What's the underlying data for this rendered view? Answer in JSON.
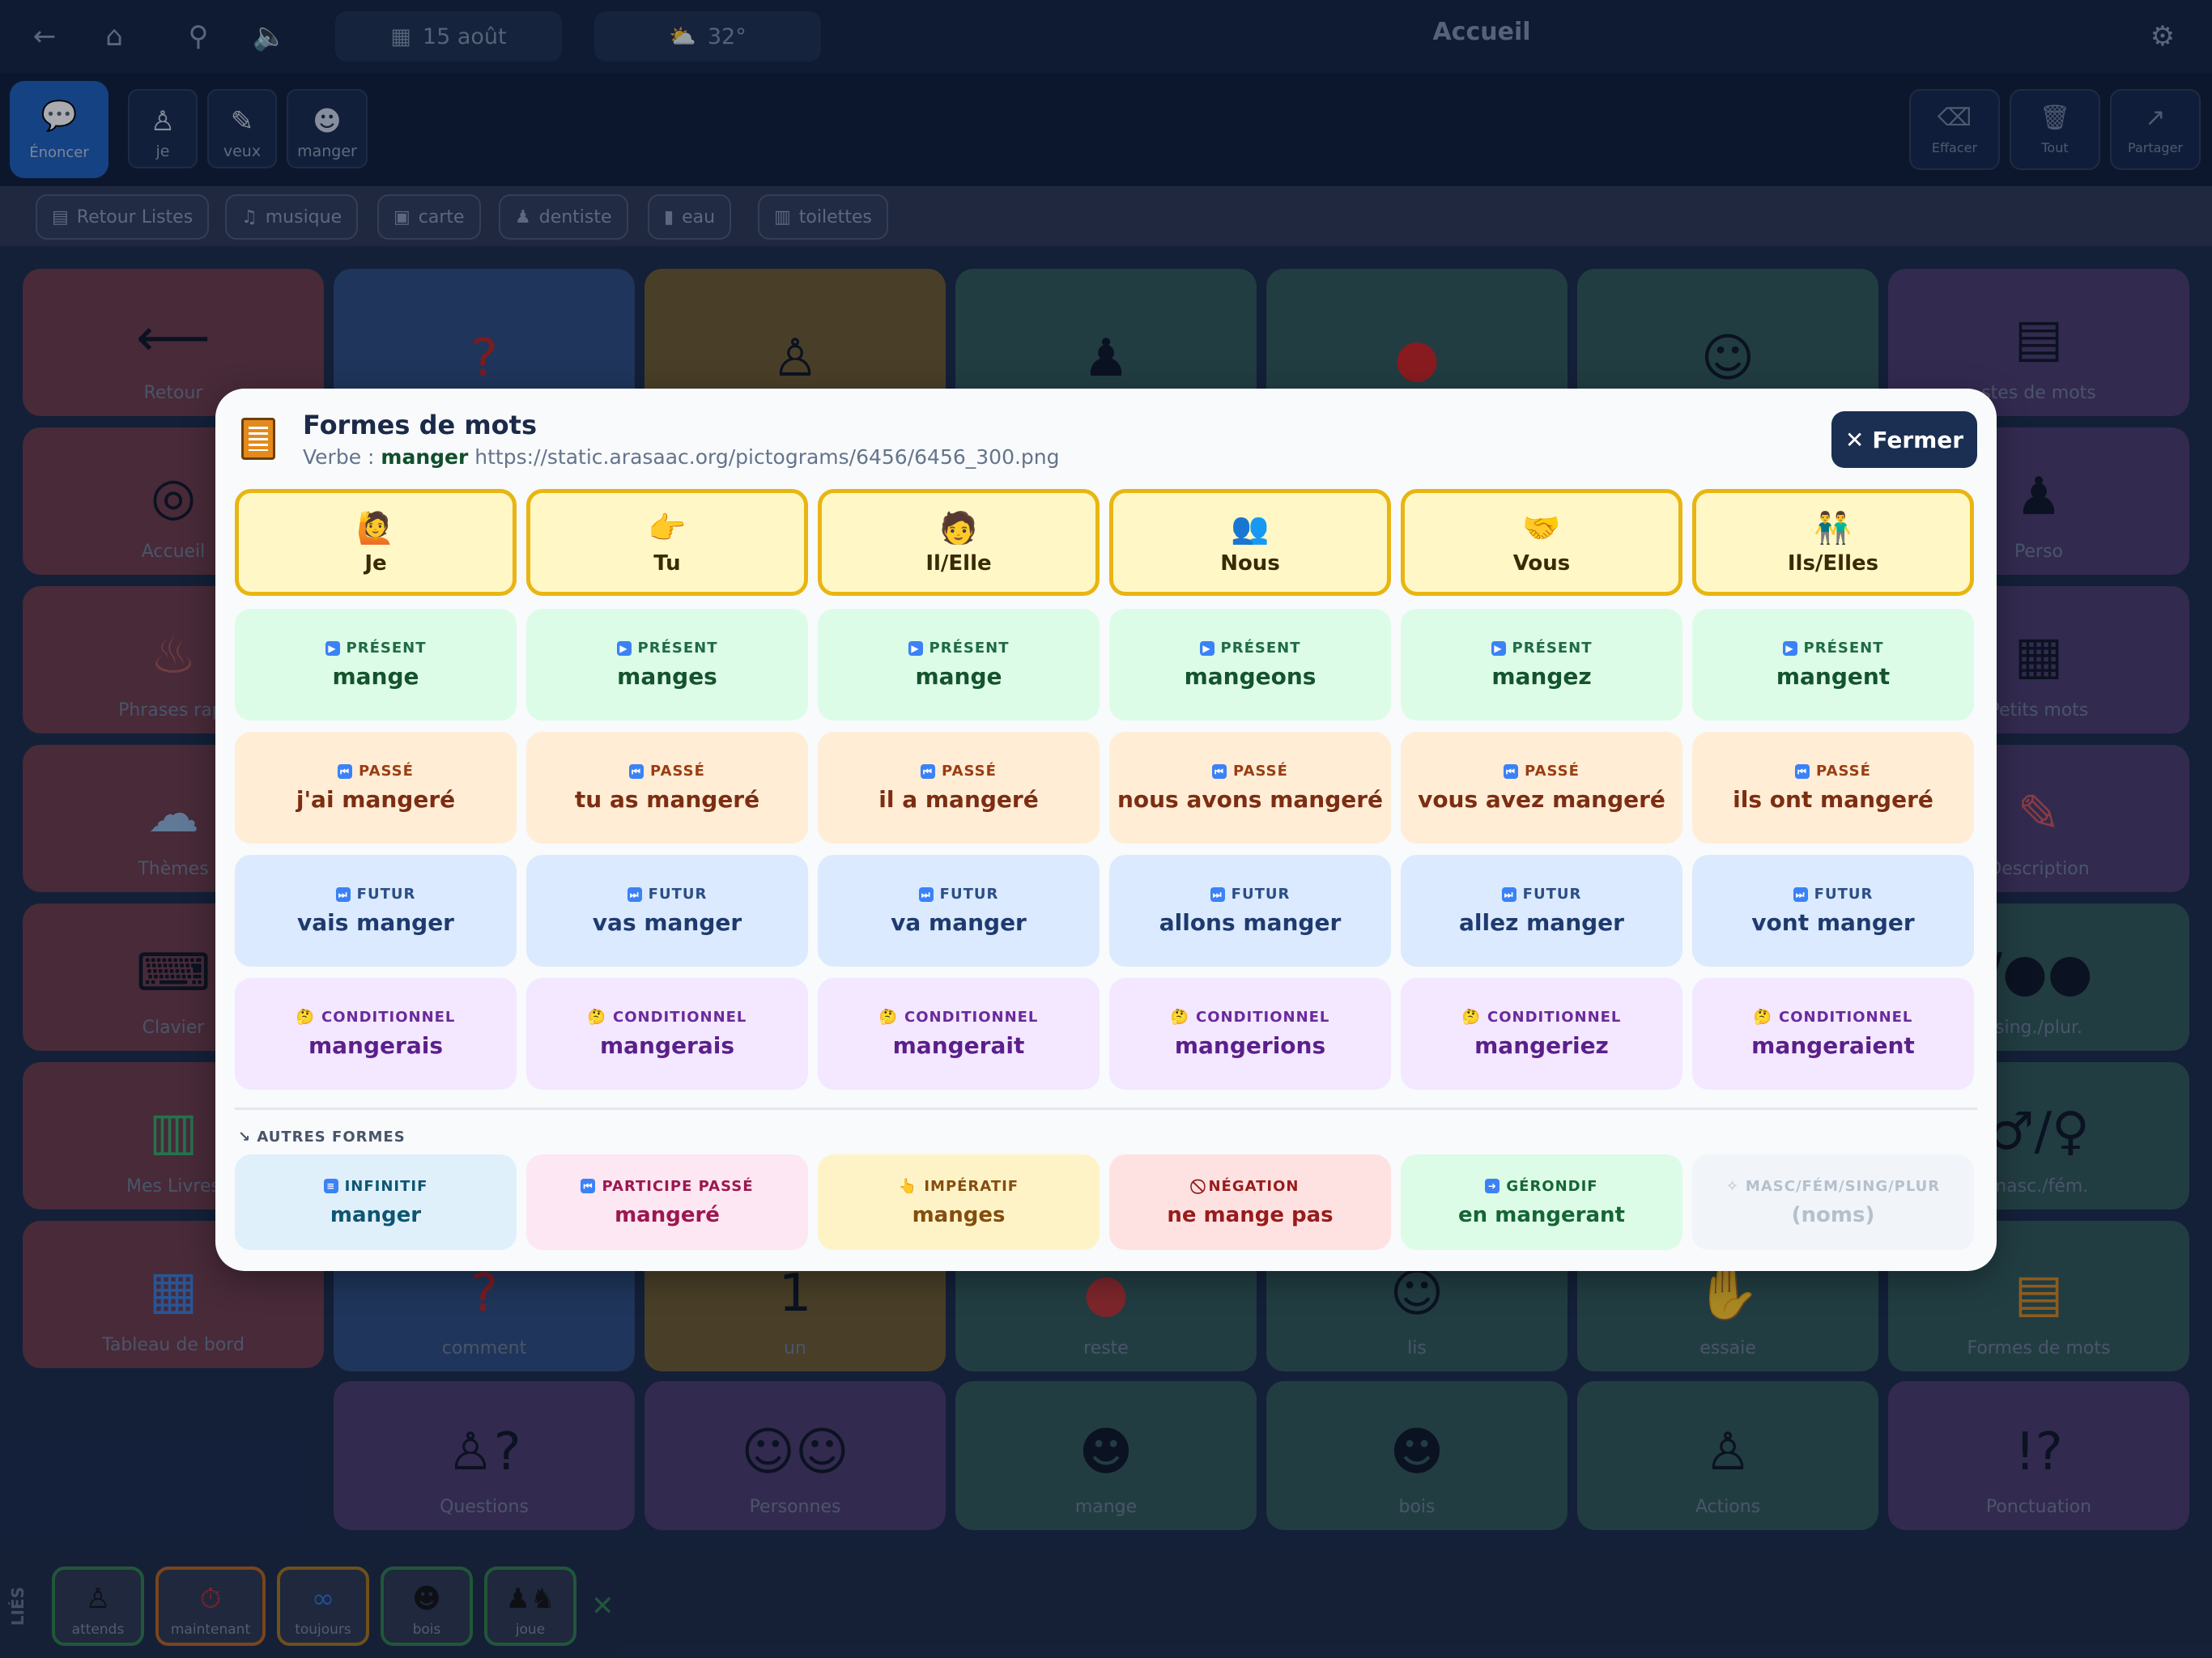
{
  "topbar": {
    "date": "15 août",
    "weather": "32°",
    "title": "Accueil"
  },
  "sentence": {
    "speak_label": "Énoncer",
    "words": [
      "je",
      "veux",
      "manger"
    ],
    "actions": {
      "clear": "Effacer",
      "all": "Tout",
      "share": "Partager"
    }
  },
  "categories": [
    "Retour Listes",
    "musique",
    "carte",
    "dentiste",
    "eau",
    "toilettes"
  ],
  "grid": {
    "tiles": [
      "Retour",
      "Accueil",
      "Phrases rapi",
      "Thèmes",
      "Clavier",
      "Mes Livres",
      "Tableau de bord",
      "comment",
      "un",
      "reste",
      "lis",
      "essaie",
      "Formes de mots",
      "Questions",
      "Personnes",
      "mange",
      "bois",
      "Actions",
      "Ponctuation",
      "stes de mots",
      "Perso",
      "Petits mots",
      "Description",
      "sing./plur.",
      "masc./fém."
    ]
  },
  "lies": {
    "label": "LIÉS",
    "items": [
      "attends",
      "maintenant",
      "toujours",
      "bois",
      "joue"
    ]
  },
  "modal": {
    "title": "Formes de mots",
    "sub_prefix": "Verbe :",
    "verb": "manger",
    "url": "https://static.arasaac.org/pictograms/6456/6456_300.png",
    "close_label": "Fermer",
    "pronouns": [
      {
        "emoji": "🙋",
        "label": "Je"
      },
      {
        "emoji": "👉",
        "label": "Tu"
      },
      {
        "emoji": "🧑",
        "label": "Il/Elle"
      },
      {
        "emoji": "👥",
        "label": "Nous"
      },
      {
        "emoji": "🤝",
        "label": "Vous"
      },
      {
        "emoji": "👬",
        "label": "Ils/Elles"
      }
    ],
    "rows": {
      "present": {
        "label": "PRÉSENT",
        "values": [
          "mange",
          "manges",
          "mange",
          "mangeons",
          "mangez",
          "mangent"
        ]
      },
      "passe": {
        "label": "PASSÉ",
        "values": [
          "j'ai mangeré",
          "tu as mangeré",
          "il a mangeré",
          "nous avons mangeré",
          "vous avez mangeré",
          "ils ont mangeré"
        ]
      },
      "futur": {
        "label": "FUTUR",
        "values": [
          "vais manger",
          "vas manger",
          "va manger",
          "allons manger",
          "allez manger",
          "vont manger"
        ]
      },
      "conditionnel": {
        "label": "CONDITIONNEL",
        "values": [
          "mangerais",
          "mangerais",
          "mangerait",
          "mangerions",
          "mangeriez",
          "mangeraient"
        ]
      }
    },
    "other_label": "AUTRES FORMES",
    "others": [
      {
        "label": "INFINITIF",
        "value": "manger"
      },
      {
        "label": "PARTICIPE PASSÉ",
        "value": "mangeré"
      },
      {
        "label": "IMPÉRATIF",
        "value": "manges"
      },
      {
        "label": "NÉGATION",
        "value": "ne mange pas"
      },
      {
        "label": "GÉRONDIF",
        "value": "en mangerant"
      },
      {
        "label": "MASC/FÉM/SING/PLUR",
        "value": "(noms)"
      }
    ]
  }
}
